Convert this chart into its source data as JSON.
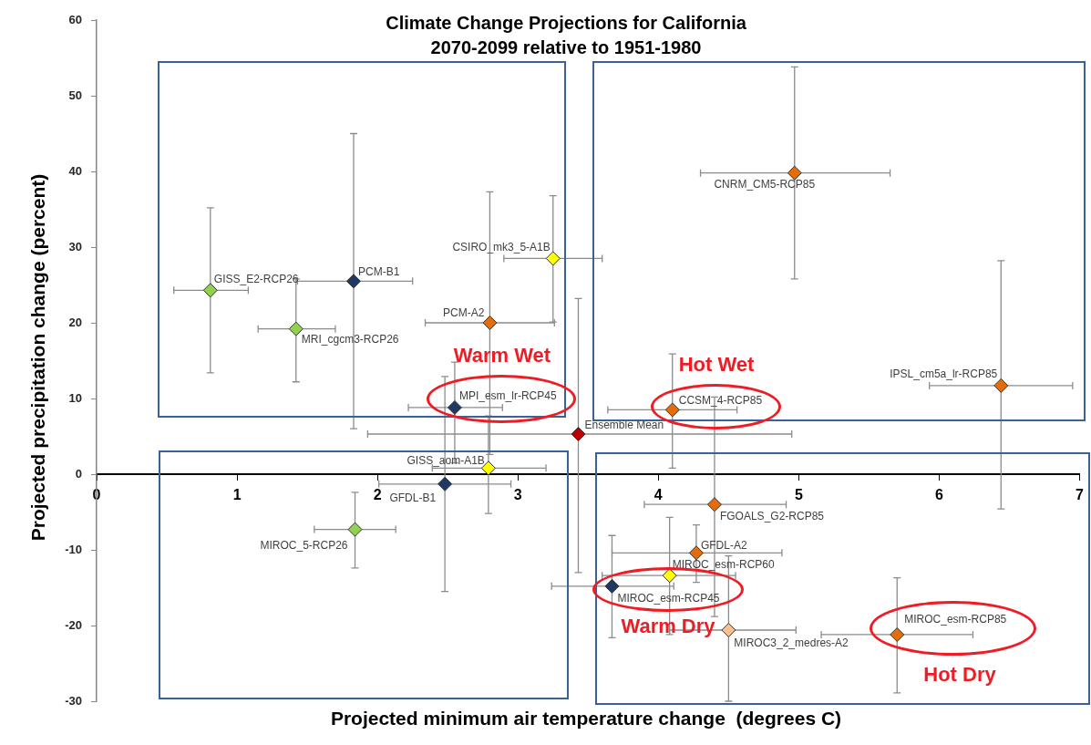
{
  "chart_data": {
    "type": "scatter",
    "title": "Climate Change Projections for California",
    "subtitle": "2070-2099 relative to 1951-1980",
    "xlabel": "Projected minimum air temperature change  (degrees C)",
    "ylabel": "Projected precipitation change (percent)",
    "xlim": [
      0,
      7
    ],
    "xticks": [
      0,
      1,
      2,
      3,
      4,
      5,
      6,
      7
    ],
    "ylim": [
      -30,
      60
    ],
    "yticks": [
      -30,
      -20,
      -10,
      0,
      10,
      20,
      30,
      40,
      50,
      60
    ],
    "grid": false,
    "legend": false,
    "marker": "diamond",
    "annotations": [
      "Warm Wet",
      "Hot Wet",
      "Warm Dry",
      "Hot Dry"
    ],
    "series": [
      {
        "name": "GISS_E2-RCP26",
        "color": "#92d050",
        "x": [
          0.81
        ],
        "values": [
          24.3
        ],
        "xerrors": [
          [
            0.55,
            1.08
          ]
        ],
        "errors": [
          [
            13.4,
            35.2
          ]
        ]
      },
      {
        "name": "MRI_cgcm3-RCP26",
        "color": "#92d050",
        "x": [
          1.42
        ],
        "values": [
          19.2
        ],
        "xerrors": [
          [
            1.15,
            1.7
          ]
        ],
        "errors": [
          [
            12.2,
            25.8
          ]
        ]
      },
      {
        "name": "PCM-B1",
        "color": "#1f3864",
        "x": [
          1.83
        ],
        "values": [
          25.5
        ],
        "xerrors": [
          [
            1.43,
            2.25
          ]
        ],
        "errors": [
          [
            6.0,
            45.0
          ]
        ]
      },
      {
        "name": "CSIRO_mk3_5-A1B",
        "color": "#ffff00",
        "x": [
          3.25
        ],
        "values": [
          28.5
        ],
        "xerrors": [
          [
            2.9,
            3.6
          ]
        ],
        "errors": [
          [
            20.1,
            36.8
          ]
        ]
      },
      {
        "name": "PCM-A2",
        "color": "#e46c0a",
        "x": [
          2.8
        ],
        "values": [
          20.0
        ],
        "xerrors": [
          [
            2.34,
            3.26
          ]
        ],
        "errors": [
          [
            2.6,
            37.3
          ]
        ]
      },
      {
        "name": "MPI_esm_lr-RCP45",
        "color": "#1f3864",
        "x": [
          2.55
        ],
        "values": [
          8.8
        ],
        "xerrors": [
          [
            2.22,
            2.89
          ]
        ],
        "errors": [
          [
            1.5,
            14.8
          ]
        ]
      },
      {
        "name": "Ensemble Mean",
        "color": "#c00000",
        "x": [
          3.43
        ],
        "values": [
          5.3
        ],
        "xerrors": [
          [
            1.93,
            4.95
          ]
        ],
        "errors": [
          [
            -13.0,
            23.2
          ]
        ]
      },
      {
        "name": "GISS_aom-A1B",
        "color": "#ffff00",
        "x": [
          2.79
        ],
        "values": [
          0.8
        ],
        "xerrors": [
          [
            2.39,
            3.2
          ]
        ],
        "errors": [
          [
            -5.2,
            7.7
          ]
        ]
      },
      {
        "name": "GFDL-B1",
        "color": "#1f3864",
        "x": [
          2.48
        ],
        "values": [
          -1.3
        ],
        "xerrors": [
          [
            2.01,
            2.95
          ]
        ],
        "errors": [
          [
            -15.5,
            12.9
          ]
        ]
      },
      {
        "name": "MIROC_5-RCP26",
        "color": "#92d050",
        "x": [
          1.84
        ],
        "values": [
          -7.3
        ],
        "xerrors": [
          [
            1.55,
            2.13
          ]
        ],
        "errors": [
          [
            -12.4,
            -2.4
          ]
        ]
      },
      {
        "name": "CNRM_CM5-RCP85",
        "color": "#e46c0a",
        "x": [
          4.97
        ],
        "values": [
          39.8
        ],
        "xerrors": [
          [
            4.3,
            5.65
          ]
        ],
        "errors": [
          [
            25.8,
            53.8
          ]
        ]
      },
      {
        "name": "IPSL_cm5a_lr-RCP85",
        "color": "#e46c0a",
        "x": [
          6.44
        ],
        "values": [
          11.7
        ],
        "xerrors": [
          [
            5.93,
            6.95
          ]
        ],
        "errors": [
          [
            -4.6,
            28.2
          ]
        ]
      },
      {
        "name": "CCSM_4-RCP85",
        "color": "#e46c0a",
        "x": [
          4.1
        ],
        "values": [
          8.5
        ],
        "xerrors": [
          [
            3.64,
            4.56
          ]
        ],
        "errors": [
          [
            0.8,
            15.9
          ]
        ]
      },
      {
        "name": "FGOALS_G2-RCP85",
        "color": "#e46c0a",
        "x": [
          4.4
        ],
        "values": [
          -4.0
        ],
        "xerrors": [
          [
            3.9,
            4.91
          ]
        ],
        "errors": [
          [
            -18.8,
            10.2
          ]
        ]
      },
      {
        "name": "GFDL-A2",
        "color": "#e46c0a",
        "x": [
          4.27
        ],
        "values": [
          -10.4
        ],
        "xerrors": [
          [
            3.67,
            4.88
          ]
        ],
        "errors": [
          [
            -14.3,
            -6.7
          ]
        ]
      },
      {
        "name": "MIROC_esm-RCP60",
        "color": "#ffff00",
        "x": [
          4.08
        ],
        "values": [
          -13.4
        ],
        "xerrors": [
          [
            3.6,
            4.55
          ]
        ],
        "errors": [
          [
            -21.2,
            -5.7
          ]
        ]
      },
      {
        "name": "MIROC_esm-RCP45",
        "color": "#1f3864",
        "x": [
          3.67
        ],
        "values": [
          -14.8
        ],
        "xerrors": [
          [
            3.24,
            4.11
          ]
        ],
        "errors": [
          [
            -21.6,
            -8.1
          ]
        ]
      },
      {
        "name": "MIROC3_2_medres-A2",
        "color": "#fac090",
        "x": [
          4.5
        ],
        "values": [
          -20.6
        ],
        "xerrors": [
          [
            4.08,
            4.98
          ]
        ],
        "errors": [
          [
            -30.0,
            -10.8
          ]
        ]
      },
      {
        "name": "MIROC_esm-RCP85",
        "color": "#e46c0a",
        "x": [
          5.7
        ],
        "values": [
          -21.2
        ],
        "xerrors": [
          [
            5.16,
            6.24
          ]
        ],
        "errors": [
          [
            -28.9,
            -13.7
          ]
        ]
      }
    ]
  }
}
